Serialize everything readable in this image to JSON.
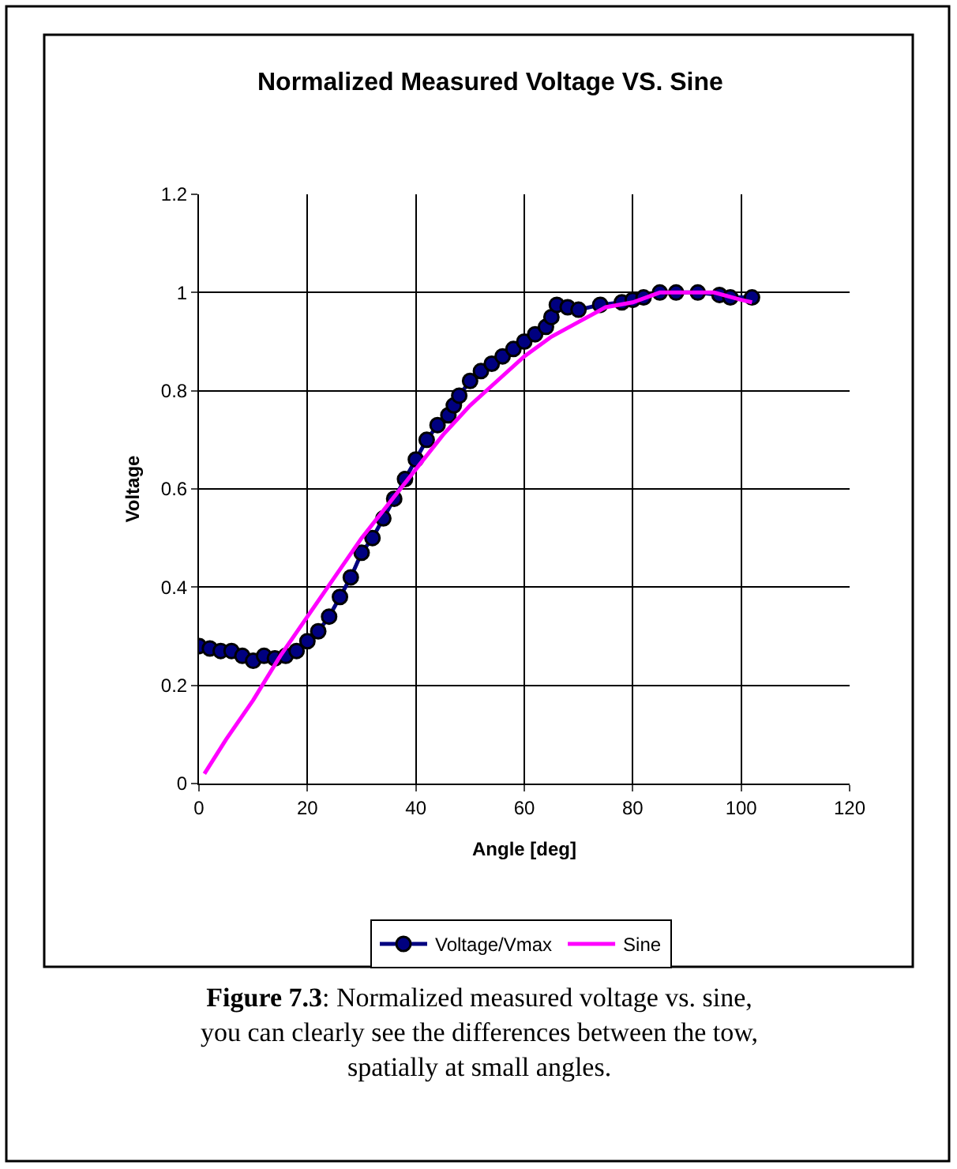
{
  "chart_data": {
    "type": "line",
    "title": "Normalized Measured Voltage VS. Sine",
    "xlabel": "Angle [deg]",
    "ylabel": "Voltage",
    "series": [
      {
        "name": "Voltage/Vmax",
        "color": "#000080",
        "marker": "circle",
        "x": [
          0,
          2,
          4,
          6,
          8,
          10,
          12,
          14,
          16,
          18,
          20,
          22,
          24,
          26,
          28,
          30,
          32,
          34,
          36,
          38,
          40,
          42,
          44,
          46,
          47,
          48,
          50,
          52,
          54,
          56,
          58,
          60,
          62,
          64,
          65,
          66,
          68,
          70,
          74,
          78,
          80,
          82,
          85,
          88,
          92,
          96,
          98,
          102
        ],
        "values": [
          0.28,
          0.275,
          0.27,
          0.27,
          0.26,
          0.25,
          0.26,
          0.255,
          0.26,
          0.27,
          0.29,
          0.31,
          0.34,
          0.38,
          0.42,
          0.47,
          0.5,
          0.54,
          0.58,
          0.62,
          0.66,
          0.7,
          0.73,
          0.75,
          0.77,
          0.79,
          0.82,
          0.84,
          0.855,
          0.87,
          0.885,
          0.9,
          0.915,
          0.93,
          0.95,
          0.975,
          0.97,
          0.965,
          0.975,
          0.98,
          0.985,
          0.99,
          1.0,
          1.0,
          1.0,
          0.995,
          0.99,
          0.99
        ]
      },
      {
        "name": "Sine",
        "color": "#ff00ff",
        "marker": "none",
        "x": [
          1,
          5,
          10,
          15,
          20,
          25,
          30,
          35,
          40,
          45,
          50,
          55,
          60,
          65,
          70,
          75,
          80,
          85,
          90,
          95,
          100,
          102
        ],
        "values": [
          0.02,
          0.09,
          0.17,
          0.26,
          0.34,
          0.42,
          0.5,
          0.57,
          0.64,
          0.71,
          0.77,
          0.82,
          0.87,
          0.91,
          0.94,
          0.97,
          0.98,
          1.0,
          1.0,
          1.0,
          0.985,
          0.98
        ]
      }
    ],
    "xlim": [
      0,
      120
    ],
    "xticks": [
      0,
      20,
      40,
      60,
      80,
      100,
      120
    ],
    "ylim": [
      0,
      1.2
    ],
    "yticks": [
      0,
      0.2,
      0.4,
      0.6,
      0.8,
      1,
      1.2
    ],
    "grid": true,
    "legend": "bottom",
    "line_style": "solid",
    "annotations": [
      "Figure 7.3: Normalized measured voltage vs. sine,\nyou can clearly see the differences between the tow,\nspatially at small angles."
    ]
  }
}
